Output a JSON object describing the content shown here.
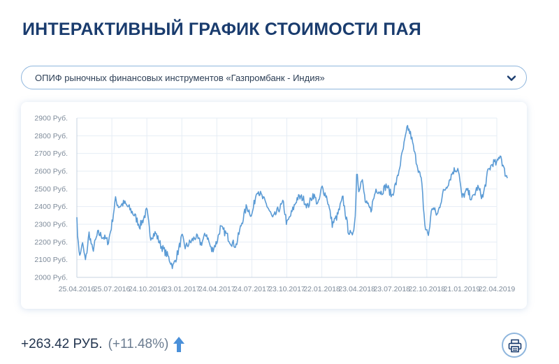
{
  "page": {
    "title": "ИНТЕРАКТИВНЫЙ ГРАФИК СТОИМОСТИ ПАЯ"
  },
  "fund_select": {
    "value": "ОПИФ рыночных финансовых инструментов «Газпромбанк - Индия»",
    "icon": "chevron-down-icon"
  },
  "summary": {
    "change_value": "+263.42 РУБ.",
    "change_percent": "(+11.48%)",
    "direction_icon": "arrow-up-icon"
  },
  "print": {
    "icon": "printer-icon"
  },
  "colors": {
    "title": "#1a3c6e",
    "line": "#5b9bd5",
    "accent": "#4a90d9",
    "card_border": "#8fb6dd"
  },
  "chart_data": {
    "type": "line",
    "title": "",
    "xlabel": "",
    "ylabel": "",
    "ylim": [
      2000,
      2900
    ],
    "ytick_values": [
      2000,
      2100,
      2200,
      2300,
      2400,
      2500,
      2600,
      2700,
      2800,
      2900
    ],
    "ytick_labels": [
      "2000 Руб.",
      "2100 Руб.",
      "2200 Руб.",
      "2300 Руб.",
      "2400 Руб.",
      "2500 Руб.",
      "2600 Руб.",
      "2700 Руб.",
      "2800 Руб.",
      "2900 Руб."
    ],
    "xtick_labels": [
      "25.04.2016",
      "25.07.2016",
      "24.10.2016",
      "23.01.2017",
      "24.04.2017",
      "24.07.2017",
      "23.10.2017",
      "22.01.2018",
      "23.04.2018",
      "23.07.2018",
      "22.10.2018",
      "21.01.2019",
      "22.04.2019"
    ],
    "grid": true,
    "legend": "none",
    "series": [
      {
        "name": "",
        "x": [
          0,
          0.04,
          0.1,
          0.15,
          0.25,
          0.35,
          0.45,
          0.6,
          0.75,
          0.9,
          1.0,
          1.1,
          1.2,
          1.35,
          1.5,
          1.65,
          1.8,
          1.9,
          2.0,
          2.1,
          2.25,
          2.4,
          2.6,
          2.75,
          2.9,
          3.0,
          3.1,
          3.25,
          3.4,
          3.55,
          3.7,
          3.85,
          4.0,
          4.1,
          4.25,
          4.4,
          4.55,
          4.7,
          4.85,
          5.0,
          5.15,
          5.3,
          5.45,
          5.6,
          5.75,
          5.9,
          6.0,
          6.15,
          6.3,
          6.45,
          6.6,
          6.75,
          6.9,
          7.0,
          7.15,
          7.3,
          7.45,
          7.6,
          7.75,
          7.85,
          7.95,
          8.0,
          8.05,
          8.15,
          8.25,
          8.4,
          8.55,
          8.7,
          8.85,
          9.0,
          9.15,
          9.3,
          9.45,
          9.55,
          9.65,
          9.75,
          9.85,
          9.95,
          10.05,
          10.15,
          10.3,
          10.45,
          10.6,
          10.75,
          10.9,
          11.0,
          11.15,
          11.3,
          11.45,
          11.6,
          11.75,
          11.9,
          12.0,
          12.1,
          12.2,
          12.3
        ],
        "y": [
          2340,
          2180,
          2120,
          2200,
          2090,
          2250,
          2150,
          2250,
          2230,
          2200,
          2300,
          2440,
          2400,
          2420,
          2390,
          2350,
          2290,
          2330,
          2380,
          2230,
          2250,
          2180,
          2120,
          2060,
          2150,
          2230,
          2170,
          2200,
          2230,
          2190,
          2250,
          2150,
          2200,
          2280,
          2250,
          2200,
          2180,
          2300,
          2400,
          2350,
          2500,
          2450,
          2400,
          2330,
          2380,
          2420,
          2300,
          2370,
          2450,
          2450,
          2400,
          2470,
          2410,
          2510,
          2450,
          2300,
          2350,
          2450,
          2270,
          2230,
          2320,
          2620,
          2500,
          2550,
          2420,
          2380,
          2500,
          2480,
          2520,
          2460,
          2550,
          2700,
          2850,
          2800,
          2700,
          2620,
          2540,
          2280,
          2240,
          2400,
          2350,
          2470,
          2530,
          2600,
          2620,
          2450,
          2490,
          2440,
          2510,
          2450,
          2600,
          2650,
          2640,
          2700,
          2610,
          2560
        ]
      }
    ]
  }
}
